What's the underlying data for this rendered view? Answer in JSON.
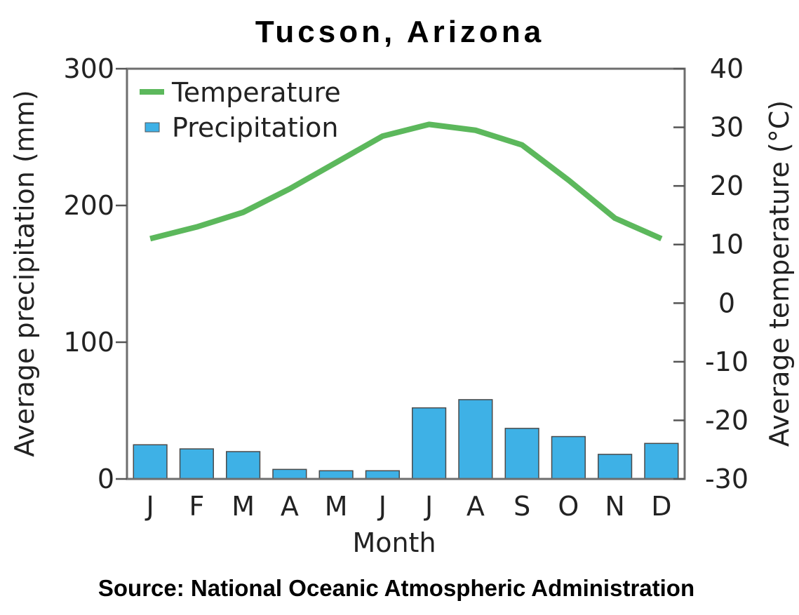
{
  "chart_data": {
    "type": "bar+line",
    "title": "Tucson, Arizona",
    "source": "Source: National Oceanic Atmospheric Administration",
    "xlabel": "Month",
    "categories": [
      "J",
      "F",
      "M",
      "A",
      "M",
      "J",
      "J",
      "A",
      "S",
      "O",
      "N",
      "D"
    ],
    "y_left": {
      "label": "Average precipitation (mm)",
      "lim": [
        0,
        300
      ],
      "ticks": [
        "0",
        "100",
        "200",
        "300"
      ]
    },
    "y_right": {
      "label": "Average temperature (°C)",
      "lim": [
        -30,
        40
      ],
      "ticks": [
        "-30",
        "-20",
        "-10",
        "0",
        "10",
        "20",
        "30",
        "40"
      ]
    },
    "series": [
      {
        "name": "Temperature",
        "type": "line",
        "axis": "right",
        "color": "#5cb85c",
        "values": [
          11,
          13,
          15.5,
          19.5,
          24,
          28.5,
          30.5,
          29.5,
          27,
          21,
          14.5,
          11
        ]
      },
      {
        "name": "Precipitation",
        "type": "bar",
        "axis": "left",
        "color": "#3eb1e6",
        "values": [
          25,
          22,
          20,
          7,
          6,
          6,
          52,
          58,
          37,
          31,
          18,
          26
        ]
      }
    ],
    "legend_position": "top-left",
    "grid": false
  }
}
